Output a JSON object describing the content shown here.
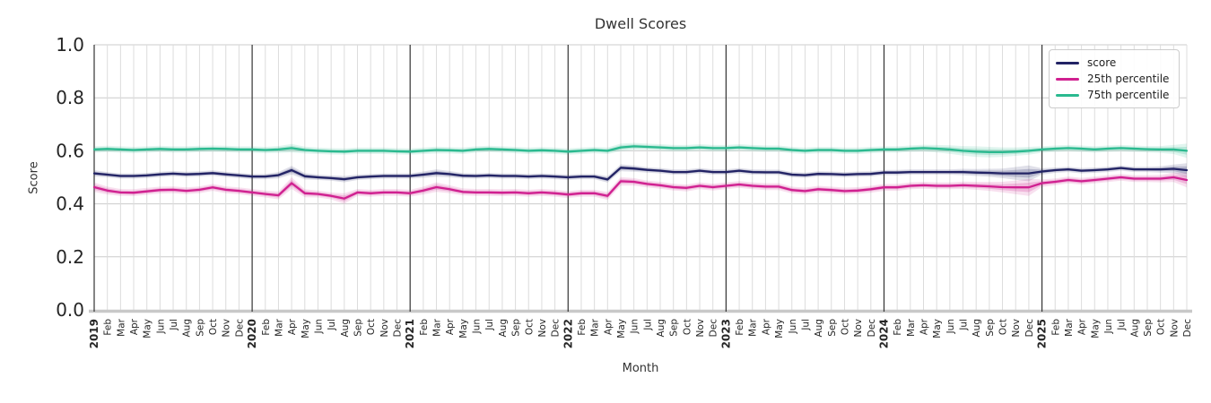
{
  "chart_data": {
    "type": "line",
    "title": "Dwell Scores",
    "xlabel": "Month",
    "ylabel": "Score",
    "ylim": [
      0.0,
      1.0
    ],
    "yticks": [
      0.0,
      0.2,
      0.4,
      0.6,
      0.8,
      1.0
    ],
    "grid": true,
    "legend_position": "upper right",
    "background": "#ffffff",
    "grid_color": "#dcdcdc",
    "hgrid_color": "#cccccc",
    "year_line_color": "#333333",
    "baseline_color": "#c8c8c8",
    "tick_label_color": "#262626",
    "x_tick_labels": [
      "2019",
      "Feb",
      "Mar",
      "Apr",
      "May",
      "Jun",
      "Jul",
      "Aug",
      "Sep",
      "Oct",
      "Nov",
      "Dec",
      "2020",
      "Feb",
      "Mar",
      "Apr",
      "May",
      "Jun",
      "Jul",
      "Aug",
      "Sep",
      "Oct",
      "Nov",
      "Dec",
      "2021",
      "Feb",
      "Mar",
      "Apr",
      "May",
      "Jun",
      "Jul",
      "Aug",
      "Sep",
      "Oct",
      "Nov",
      "Dec",
      "2022",
      "Feb",
      "Mar",
      "Apr",
      "May",
      "Jun",
      "Jul",
      "Aug",
      "Sep",
      "Oct",
      "Nov",
      "Dec",
      "2023",
      "Feb",
      "Mar",
      "Apr",
      "May",
      "Jun",
      "Jul",
      "Aug",
      "Sep",
      "Oct",
      "Nov",
      "Dec",
      "2024",
      "Feb",
      "Mar",
      "Apr",
      "May",
      "Jun",
      "Jul",
      "Aug",
      "Sep",
      "Oct",
      "Nov",
      "Dec",
      "2025",
      "Feb",
      "Mar",
      "Apr",
      "May",
      "Jun",
      "Jul",
      "Aug",
      "Sep",
      "Oct",
      "Nov",
      "Dec"
    ],
    "series": [
      {
        "name": "score",
        "color": "#222365",
        "values": [
          0.515,
          0.51,
          0.505,
          0.505,
          0.507,
          0.511,
          0.514,
          0.511,
          0.513,
          0.516,
          0.511,
          0.507,
          0.503,
          0.503,
          0.508,
          0.527,
          0.504,
          0.5,
          0.497,
          0.493,
          0.5,
          0.503,
          0.505,
          0.505,
          0.505,
          0.51,
          0.516,
          0.512,
          0.506,
          0.505,
          0.507,
          0.505,
          0.505,
          0.503,
          0.505,
          0.503,
          0.5,
          0.503,
          0.503,
          0.492,
          0.536,
          0.533,
          0.528,
          0.525,
          0.52,
          0.52,
          0.525,
          0.52,
          0.52,
          0.525,
          0.52,
          0.519,
          0.519,
          0.51,
          0.508,
          0.513,
          0.512,
          0.51,
          0.512,
          0.513,
          0.518,
          0.518,
          0.52,
          0.52,
          0.52,
          0.52,
          0.52,
          0.518,
          0.517,
          0.515,
          0.515,
          0.515,
          0.522,
          0.527,
          0.53,
          0.525,
          0.527,
          0.53,
          0.535,
          0.53,
          0.53,
          0.53,
          0.532,
          0.527
        ],
        "band": [
          0.012,
          0.01,
          0.01,
          0.01,
          0.01,
          0.01,
          0.01,
          0.01,
          0.01,
          0.01,
          0.01,
          0.01,
          0.01,
          0.01,
          0.012,
          0.016,
          0.012,
          0.01,
          0.01,
          0.012,
          0.01,
          0.01,
          0.01,
          0.01,
          0.01,
          0.012,
          0.014,
          0.012,
          0.01,
          0.01,
          0.01,
          0.01,
          0.01,
          0.01,
          0.01,
          0.01,
          0.01,
          0.01,
          0.01,
          0.012,
          0.013,
          0.012,
          0.01,
          0.01,
          0.01,
          0.01,
          0.01,
          0.01,
          0.01,
          0.01,
          0.01,
          0.01,
          0.01,
          0.01,
          0.01,
          0.01,
          0.01,
          0.01,
          0.01,
          0.01,
          0.01,
          0.01,
          0.01,
          0.01,
          0.01,
          0.01,
          0.012,
          0.013,
          0.015,
          0.018,
          0.024,
          0.03,
          0.012,
          0.01,
          0.01,
          0.01,
          0.01,
          0.01,
          0.01,
          0.01,
          0.01,
          0.012,
          0.016,
          0.026
        ]
      },
      {
        "name": "25th percentile",
        "color": "#d02090",
        "values": [
          0.463,
          0.45,
          0.443,
          0.442,
          0.447,
          0.452,
          0.453,
          0.449,
          0.453,
          0.462,
          0.453,
          0.449,
          0.443,
          0.437,
          0.432,
          0.478,
          0.44,
          0.437,
          0.43,
          0.42,
          0.443,
          0.44,
          0.443,
          0.443,
          0.44,
          0.45,
          0.463,
          0.455,
          0.445,
          0.443,
          0.443,
          0.442,
          0.443,
          0.44,
          0.443,
          0.44,
          0.435,
          0.44,
          0.44,
          0.43,
          0.485,
          0.483,
          0.475,
          0.47,
          0.463,
          0.46,
          0.468,
          0.463,
          0.468,
          0.473,
          0.468,
          0.465,
          0.465,
          0.452,
          0.448,
          0.455,
          0.452,
          0.448,
          0.45,
          0.455,
          0.462,
          0.462,
          0.468,
          0.47,
          0.468,
          0.468,
          0.47,
          0.468,
          0.466,
          0.463,
          0.462,
          0.462,
          0.478,
          0.483,
          0.49,
          0.485,
          0.49,
          0.495,
          0.5,
          0.495,
          0.495,
          0.495,
          0.5,
          0.49
        ],
        "band": [
          0.018,
          0.015,
          0.013,
          0.013,
          0.013,
          0.013,
          0.013,
          0.013,
          0.013,
          0.013,
          0.013,
          0.013,
          0.013,
          0.013,
          0.015,
          0.022,
          0.015,
          0.013,
          0.013,
          0.02,
          0.013,
          0.013,
          0.013,
          0.013,
          0.013,
          0.015,
          0.018,
          0.015,
          0.013,
          0.013,
          0.013,
          0.013,
          0.013,
          0.013,
          0.013,
          0.013,
          0.013,
          0.013,
          0.013,
          0.015,
          0.016,
          0.014,
          0.013,
          0.013,
          0.013,
          0.013,
          0.013,
          0.013,
          0.013,
          0.013,
          0.013,
          0.013,
          0.013,
          0.013,
          0.013,
          0.013,
          0.013,
          0.013,
          0.013,
          0.013,
          0.013,
          0.013,
          0.013,
          0.013,
          0.013,
          0.013,
          0.014,
          0.015,
          0.017,
          0.02,
          0.026,
          0.032,
          0.014,
          0.013,
          0.013,
          0.013,
          0.013,
          0.013,
          0.013,
          0.013,
          0.013,
          0.014,
          0.018,
          0.028
        ]
      },
      {
        "name": "75th percentile",
        "color": "#2ab98f",
        "values": [
          0.605,
          0.607,
          0.605,
          0.603,
          0.605,
          0.607,
          0.605,
          0.605,
          0.607,
          0.608,
          0.607,
          0.605,
          0.605,
          0.603,
          0.605,
          0.61,
          0.603,
          0.6,
          0.598,
          0.597,
          0.6,
          0.6,
          0.6,
          0.598,
          0.597,
          0.6,
          0.603,
          0.602,
          0.6,
          0.605,
          0.607,
          0.605,
          0.603,
          0.6,
          0.602,
          0.6,
          0.597,
          0.6,
          0.603,
          0.6,
          0.613,
          0.617,
          0.615,
          0.613,
          0.61,
          0.61,
          0.613,
          0.61,
          0.61,
          0.613,
          0.61,
          0.608,
          0.608,
          0.603,
          0.6,
          0.603,
          0.603,
          0.6,
          0.6,
          0.603,
          0.605,
          0.605,
          0.608,
          0.61,
          0.608,
          0.605,
          0.6,
          0.597,
          0.595,
          0.595,
          0.597,
          0.6,
          0.605,
          0.608,
          0.61,
          0.608,
          0.605,
          0.608,
          0.61,
          0.608,
          0.606,
          0.605,
          0.605,
          0.6
        ],
        "band": [
          0.012,
          0.012,
          0.012,
          0.012,
          0.012,
          0.012,
          0.012,
          0.012,
          0.012,
          0.012,
          0.012,
          0.012,
          0.012,
          0.012,
          0.013,
          0.016,
          0.013,
          0.012,
          0.012,
          0.012,
          0.012,
          0.012,
          0.012,
          0.012,
          0.012,
          0.012,
          0.013,
          0.012,
          0.012,
          0.012,
          0.012,
          0.012,
          0.012,
          0.012,
          0.012,
          0.012,
          0.012,
          0.012,
          0.012,
          0.012,
          0.014,
          0.013,
          0.012,
          0.012,
          0.012,
          0.012,
          0.012,
          0.012,
          0.012,
          0.012,
          0.012,
          0.012,
          0.012,
          0.012,
          0.012,
          0.012,
          0.012,
          0.012,
          0.012,
          0.012,
          0.012,
          0.012,
          0.012,
          0.013,
          0.014,
          0.016,
          0.018,
          0.02,
          0.02,
          0.018,
          0.016,
          0.015,
          0.012,
          0.012,
          0.012,
          0.012,
          0.012,
          0.012,
          0.012,
          0.012,
          0.012,
          0.013,
          0.017,
          0.027
        ]
      }
    ]
  }
}
